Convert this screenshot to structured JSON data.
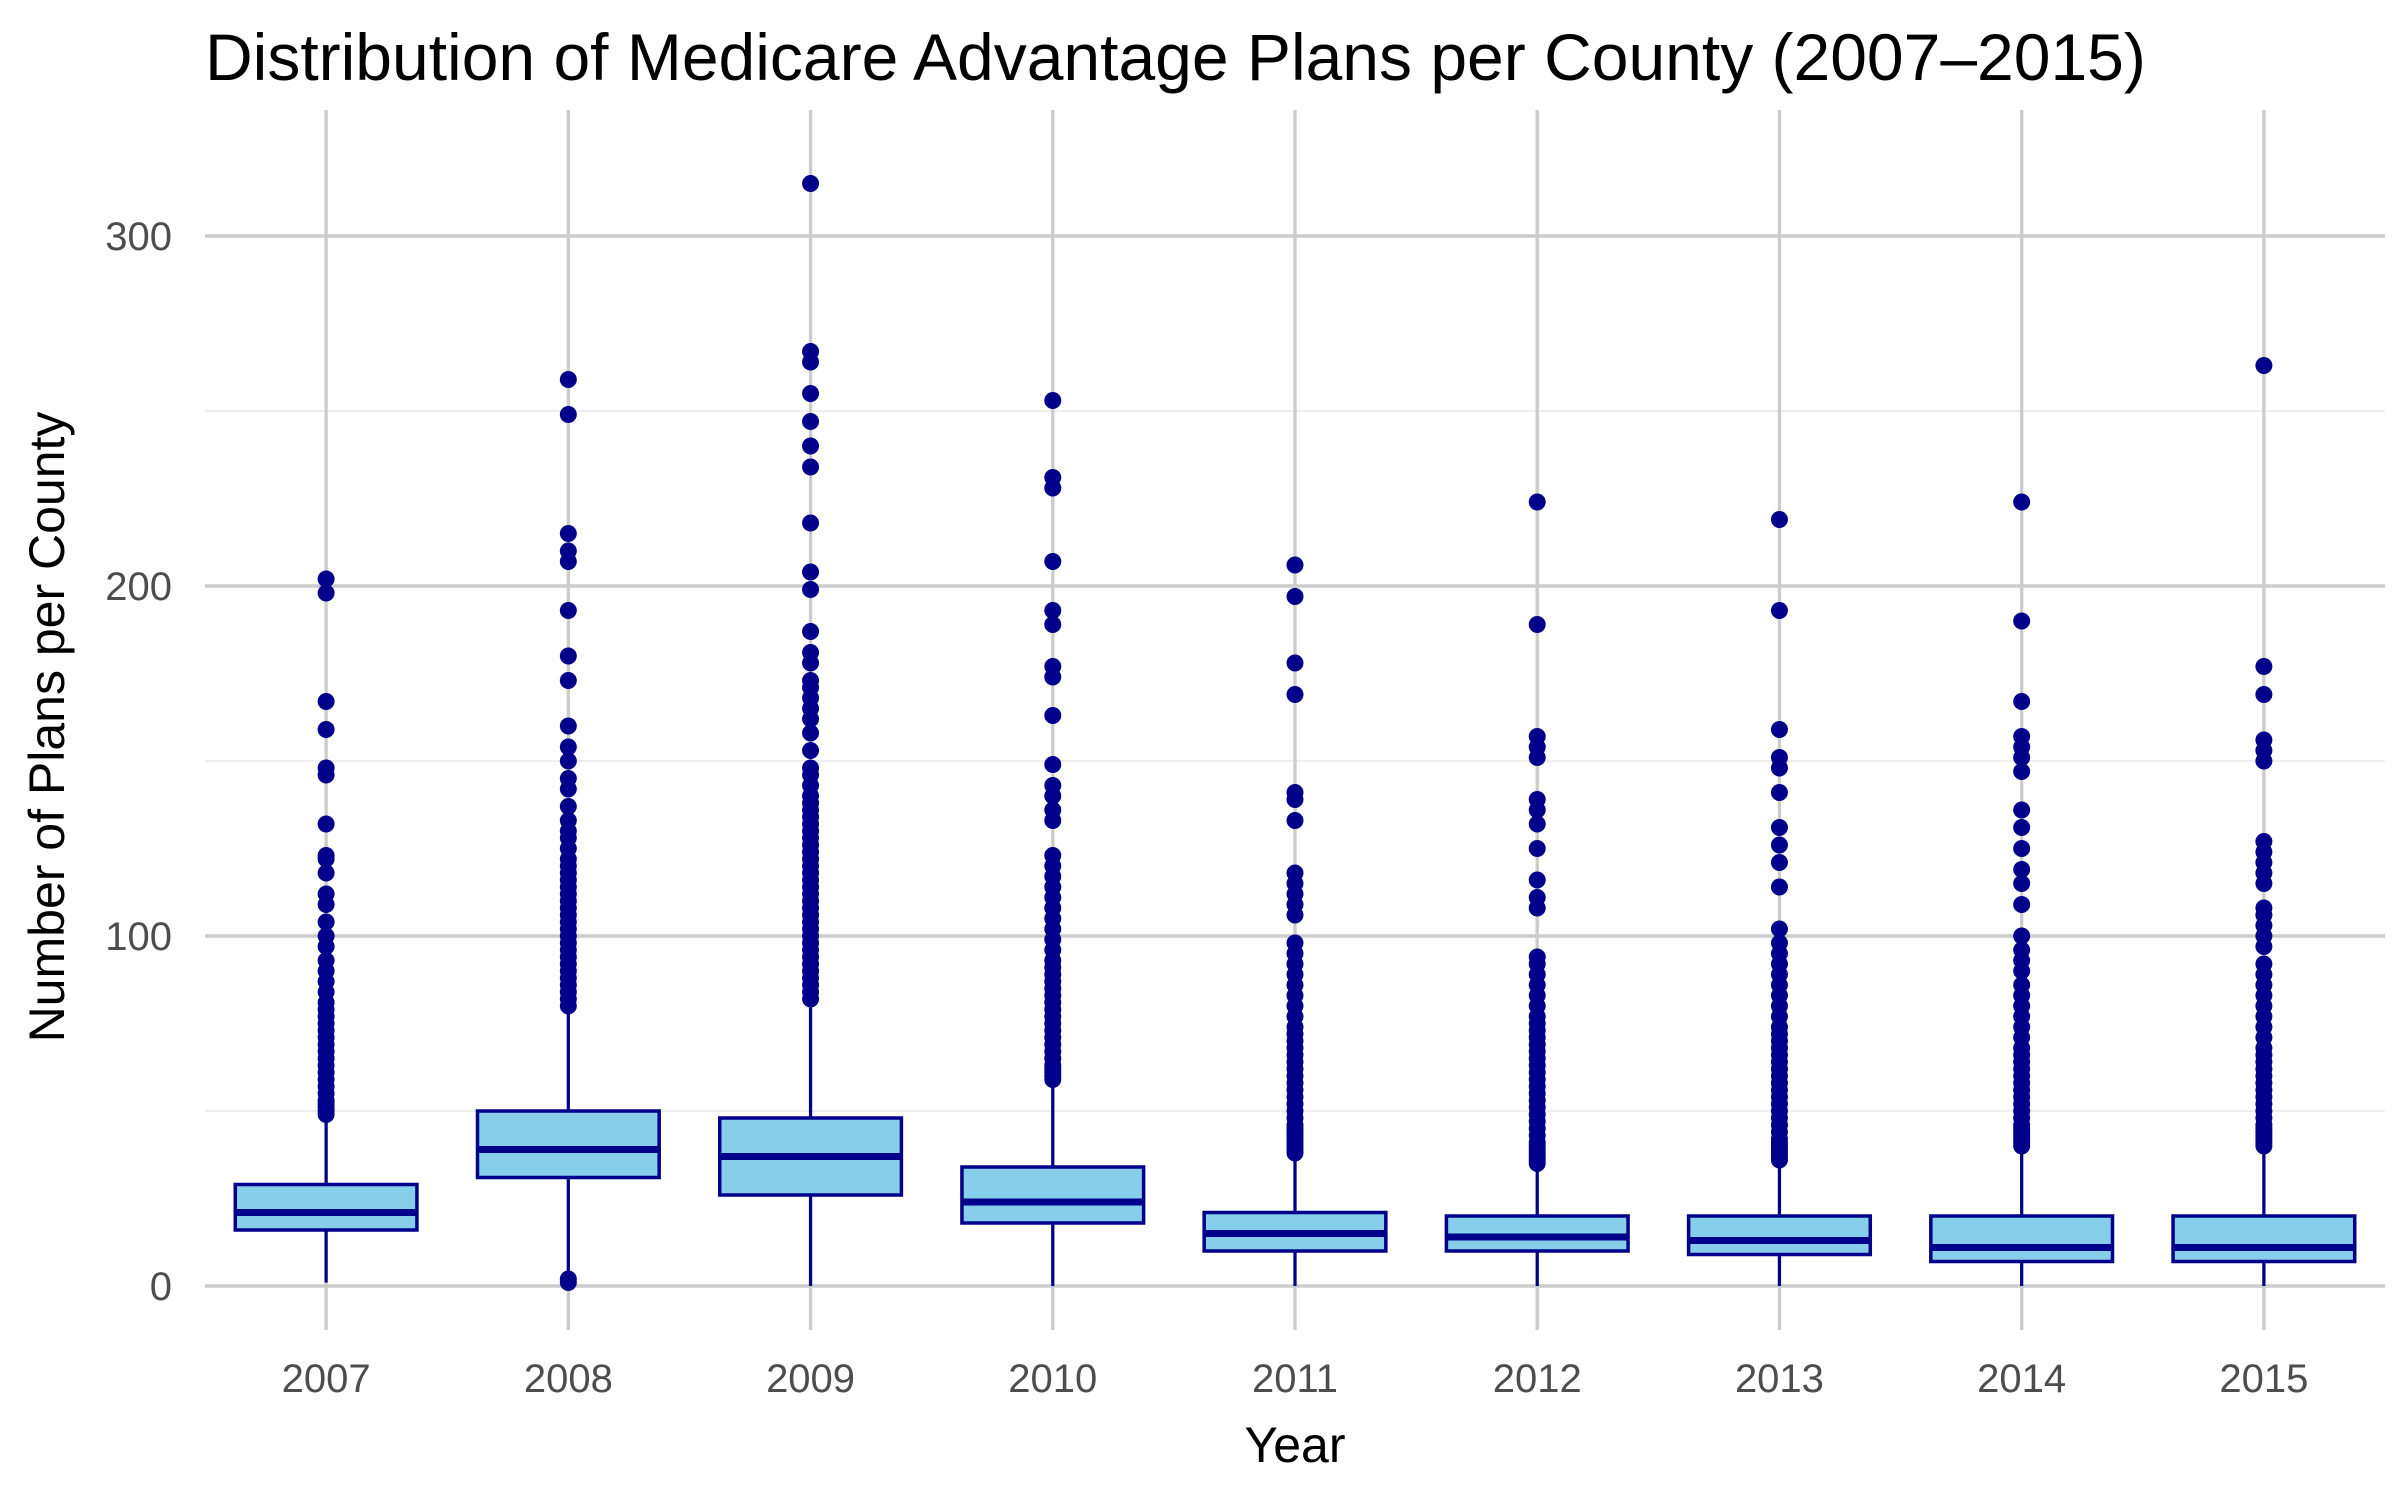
{
  "chart_data": {
    "type": "box",
    "title": "Distribution of Medicare Advantage Plans per County (2007–2015)",
    "xlabel": "Year",
    "ylabel": "Number of Plans per County",
    "ylim": [
      -13,
      330
    ],
    "y_ticks": [
      0,
      100,
      200,
      300
    ],
    "grid": true,
    "colors": {
      "box_fill": "#87ceeb",
      "box_stroke": "#00008b",
      "median": "#00008b",
      "outlier": "#00008b"
    },
    "categories": [
      "2007",
      "2008",
      "2009",
      "2010",
      "2011",
      "2012",
      "2013",
      "2014",
      "2015"
    ],
    "boxes": [
      {
        "x": "2007",
        "whisker_low": 1,
        "q1": 16,
        "median": 21,
        "q3": 29,
        "whisker_high": 48,
        "outliers": [
          49,
          50,
          51,
          52,
          53,
          55,
          57,
          59,
          61,
          63,
          65,
          67,
          69,
          71,
          73,
          75,
          77,
          79,
          81,
          84,
          87,
          90,
          93,
          97,
          100,
          104,
          109,
          112,
          118,
          122,
          123,
          132,
          146,
          148,
          159,
          167,
          198,
          202
        ]
      },
      {
        "x": "2008",
        "whisker_low": 1,
        "q1": 31,
        "median": 39,
        "q3": 50,
        "whisker_high": 78,
        "outliers": [
          1,
          2,
          80,
          82,
          84,
          86,
          88,
          90,
          92,
          94,
          96,
          98,
          100,
          102,
          104,
          106,
          108,
          110,
          112,
          114,
          116,
          118,
          120,
          122,
          125,
          128,
          130,
          133,
          137,
          142,
          145,
          150,
          154,
          160,
          173,
          180,
          193,
          207,
          210,
          215,
          249,
          259
        ]
      },
      {
        "x": "2009",
        "whisker_low": 0,
        "q1": 26,
        "median": 37,
        "q3": 48,
        "whisker_high": 81,
        "outliers": [
          82,
          84,
          86,
          88,
          90,
          92,
          94,
          96,
          98,
          100,
          102,
          104,
          106,
          108,
          110,
          112,
          114,
          116,
          118,
          120,
          122,
          124,
          126,
          128,
          130,
          132,
          134,
          136,
          138,
          140,
          143,
          146,
          148,
          153,
          158,
          162,
          165,
          168,
          171,
          173,
          178,
          181,
          187,
          199,
          204,
          218,
          234,
          240,
          247,
          255,
          264,
          267,
          315
        ]
      },
      {
        "x": "2010",
        "whisker_low": 0,
        "q1": 18,
        "median": 24,
        "q3": 34,
        "whisker_high": 58,
        "outliers": [
          59,
          60,
          61,
          62,
          63,
          65,
          67,
          69,
          71,
          73,
          75,
          77,
          79,
          81,
          83,
          85,
          87,
          89,
          91,
          93,
          96,
          99,
          102,
          105,
          108,
          111,
          114,
          117,
          120,
          123,
          133,
          136,
          140,
          143,
          149,
          163,
          174,
          177,
          189,
          193,
          207,
          228,
          231,
          253
        ]
      },
      {
        "x": "2011",
        "whisker_low": 0,
        "q1": 10,
        "median": 15,
        "q3": 21,
        "whisker_high": 37,
        "outliers": [
          38,
          39,
          40,
          41,
          42,
          43,
          44,
          45,
          46,
          48,
          50,
          52,
          54,
          56,
          58,
          60,
          62,
          64,
          66,
          68,
          70,
          72,
          74,
          77,
          80,
          83,
          86,
          89,
          92,
          95,
          98,
          106,
          109,
          112,
          115,
          118,
          133,
          139,
          141,
          169,
          178,
          197,
          206
        ]
      },
      {
        "x": "2012",
        "whisker_low": 0,
        "q1": 10,
        "median": 14,
        "q3": 20,
        "whisker_high": 34,
        "outliers": [
          35,
          36,
          37,
          38,
          39,
          40,
          41,
          43,
          45,
          47,
          49,
          51,
          53,
          55,
          57,
          59,
          61,
          63,
          65,
          67,
          69,
          71,
          73,
          75,
          77,
          80,
          83,
          86,
          89,
          92,
          94,
          108,
          111,
          116,
          125,
          132,
          136,
          139,
          151,
          154,
          157,
          189,
          224
        ]
      },
      {
        "x": "2013",
        "whisker_low": 0,
        "q1": 9,
        "median": 13,
        "q3": 20,
        "whisker_high": 35,
        "outliers": [
          36,
          37,
          38,
          39,
          40,
          41,
          42,
          44,
          46,
          48,
          50,
          52,
          54,
          56,
          58,
          60,
          62,
          64,
          66,
          68,
          70,
          72,
          74,
          77,
          80,
          83,
          86,
          89,
          92,
          95,
          98,
          102,
          114,
          121,
          126,
          131,
          141,
          148,
          151,
          159,
          193,
          219
        ]
      },
      {
        "x": "2014",
        "whisker_low": 0,
        "q1": 7,
        "median": 11,
        "q3": 20,
        "whisker_high": 39,
        "outliers": [
          40,
          41,
          42,
          43,
          44,
          45,
          46,
          48,
          50,
          52,
          54,
          56,
          58,
          60,
          62,
          64,
          66,
          68,
          71,
          74,
          77,
          80,
          83,
          86,
          90,
          93,
          96,
          100,
          109,
          115,
          119,
          125,
          131,
          136,
          147,
          151,
          154,
          157,
          167,
          190,
          224
        ]
      },
      {
        "x": "2015",
        "whisker_low": 0,
        "q1": 7,
        "median": 11,
        "q3": 20,
        "whisker_high": 39,
        "outliers": [
          40,
          41,
          42,
          43,
          44,
          45,
          46,
          48,
          50,
          52,
          54,
          56,
          58,
          60,
          62,
          64,
          66,
          68,
          71,
          74,
          77,
          80,
          83,
          86,
          89,
          92,
          97,
          100,
          103,
          106,
          108,
          115,
          118,
          121,
          124,
          127,
          150,
          153,
          156,
          169,
          177,
          263
        ]
      }
    ]
  }
}
